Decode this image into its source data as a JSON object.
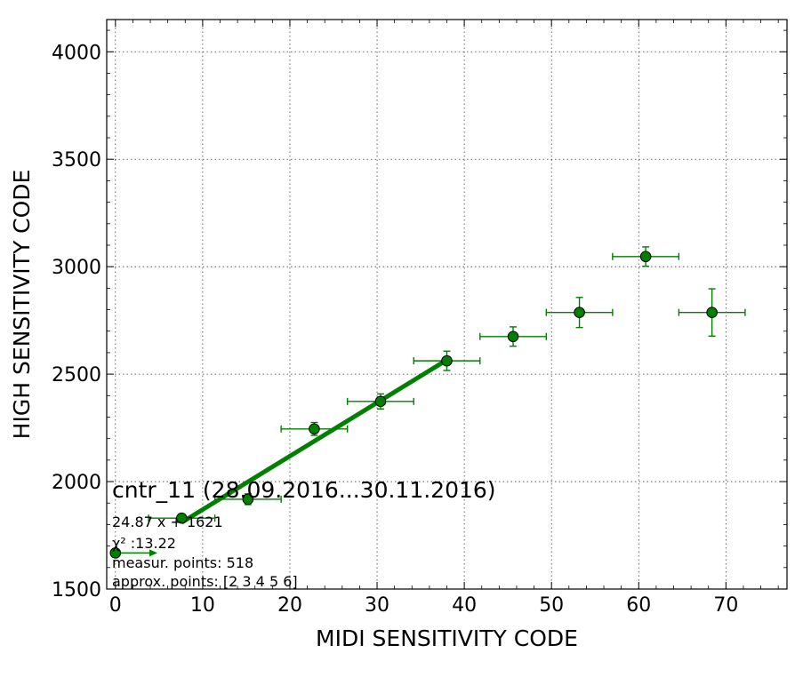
{
  "chart_data": {
    "type": "scatter",
    "title": "",
    "xlabel": "MIDI SENSITIVITY CODE",
    "ylabel": "HIGH SENSITIVITY CODE",
    "xlim": [
      -1,
      77
    ],
    "ylim": [
      1500,
      4150
    ],
    "xticks": [
      0,
      10,
      20,
      30,
      40,
      50,
      60,
      70
    ],
    "yticks": [
      1500,
      2000,
      2500,
      3000,
      3500,
      4000
    ],
    "grid": true,
    "series": [
      {
        "name": "",
        "color": "#007f00",
        "marker": "circle",
        "points": [
          {
            "x": 0.0,
            "y": 1668,
            "xerr": 4.0,
            "yerr": 0,
            "xerr_side": "right"
          },
          {
            "x": 7.6,
            "y": 1830,
            "xerr": 3.8,
            "yerr": 0
          },
          {
            "x": 15.2,
            "y": 1918,
            "xerr": 3.8,
            "yerr": 25
          },
          {
            "x": 22.8,
            "y": 2245,
            "xerr": 3.8,
            "yerr": 30
          },
          {
            "x": 30.4,
            "y": 2373,
            "xerr": 3.8,
            "yerr": 35
          },
          {
            "x": 38.0,
            "y": 2562,
            "xerr": 3.8,
            "yerr": 45
          },
          {
            "x": 45.6,
            "y": 2675,
            "xerr": 3.8,
            "yerr": 45
          },
          {
            "x": 53.2,
            "y": 2787,
            "xerr": 3.8,
            "yerr": 70
          },
          {
            "x": 60.8,
            "y": 3047,
            "xerr": 3.8,
            "yerr": 45
          },
          {
            "x": 68.4,
            "y": 2787,
            "xerr": 3.8,
            "yerr": 110
          }
        ]
      }
    ],
    "fit_line": {
      "color": "#007f00",
      "slope": 24.87,
      "intercept": 1621,
      "x_range": [
        7.6,
        38.0
      ]
    },
    "annotations": {
      "title_line": "cntr_11 (28.09.2016...30.11.2016)",
      "equation": "24.87 x + 1621",
      "chi2": "χ² :13.22",
      "measur_points": "measur. points: 518",
      "approx_points": "approx. points: [2 3 4 5 6]"
    }
  }
}
